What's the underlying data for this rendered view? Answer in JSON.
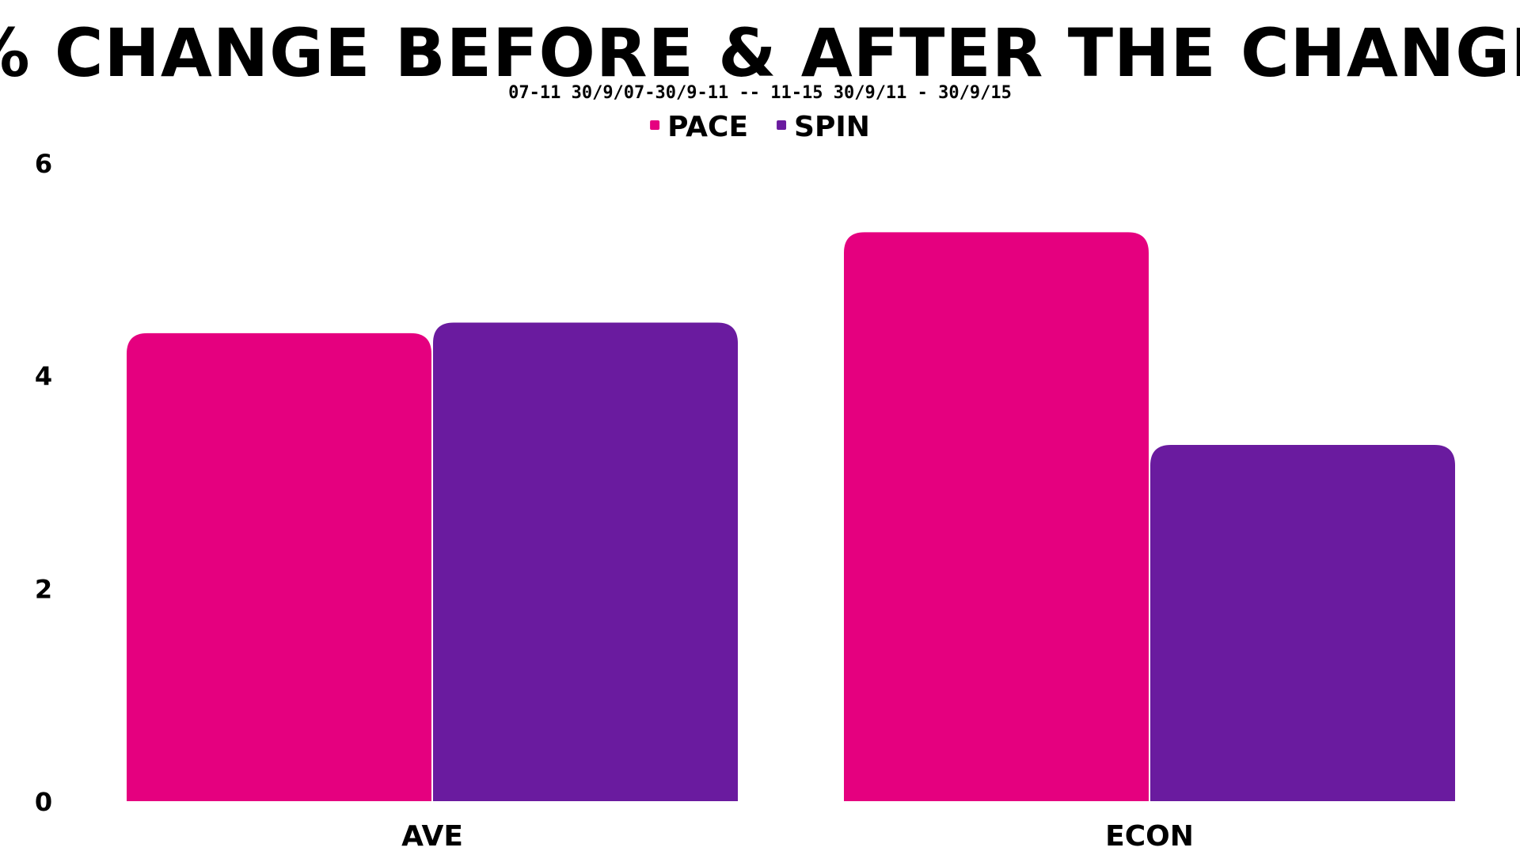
{
  "chart_data": {
    "type": "bar",
    "title": "% CHANGE BEFORE & AFTER THE CHANGE",
    "subtitle": "07-11 30/9/07-30/9-11  -- 11-15 30/9/11 - 30/9/15",
    "xlabel": "",
    "ylabel": "",
    "categories": [
      "AVE",
      "ECON"
    ],
    "series": [
      {
        "name": "PACE",
        "color": "#e5007f",
        "values": [
          4.4,
          5.35
        ]
      },
      {
        "name": "SPIN",
        "color": "#6a1b9f",
        "values": [
          4.5,
          3.35
        ]
      }
    ],
    "ylim": [
      0,
      6
    ],
    "yticks": [
      "0",
      "2",
      "4",
      "6"
    ],
    "grid": false,
    "legend_position": "top"
  }
}
